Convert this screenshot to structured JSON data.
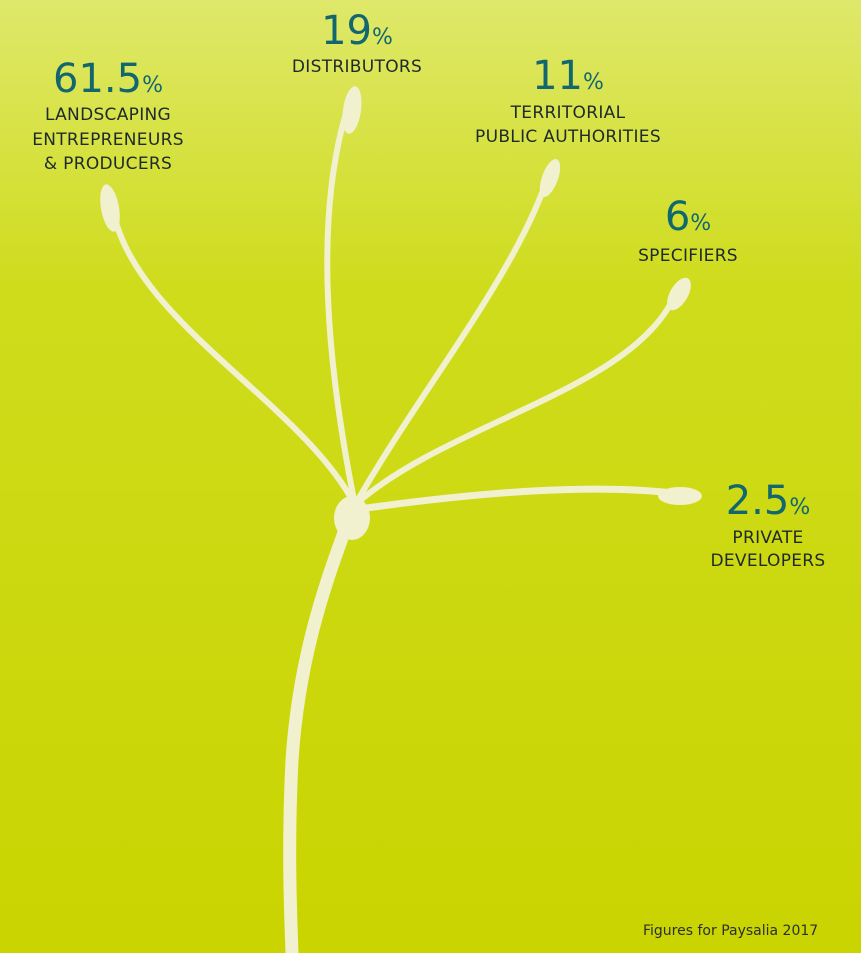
{
  "segments": [
    {
      "value": 61.5,
      "unit": "%",
      "label": [
        "LANDSCAPING",
        "ENTREPRENEURS",
        "& PRODUCERS"
      ]
    },
    {
      "value": 19,
      "unit": "%",
      "label": [
        "DISTRIBUTORS"
      ]
    },
    {
      "value": 11,
      "unit": "%",
      "label": [
        "TERRITORIAL",
        "PUBLIC AUTHORITIES"
      ]
    },
    {
      "value": 6,
      "unit": "%",
      "label": [
        "SPECIFIERS"
      ]
    },
    {
      "value": 2.5,
      "unit": "%",
      "label": [
        "PRIVATE",
        "DEVELOPERS"
      ]
    }
  ],
  "footnote": "Figures for Paysalia 2017"
}
